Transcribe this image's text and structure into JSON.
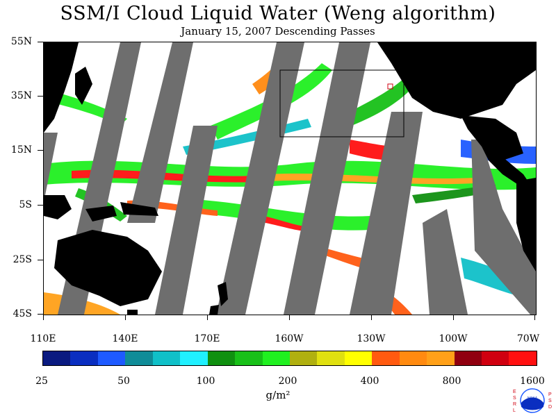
{
  "title": "SSM/I Cloud Liquid Water (Weng algorithm)",
  "subtitle": "January 15, 2007  Descending Passes",
  "lat_labels": [
    "55N",
    "35N",
    "15N",
    "5S",
    "25S",
    "45S"
  ],
  "lon_labels": [
    "110E",
    "140E",
    "170E",
    "160W",
    "130W",
    "100W",
    "70W"
  ],
  "colorbar": {
    "labels": [
      "25",
      "50",
      "100",
      "200",
      "400",
      "800",
      "1600"
    ],
    "units": "g/m²",
    "colors": [
      "#0a1a80",
      "#0a2ec0",
      "#1e5aff",
      "#108c98",
      "#10c0c8",
      "#20f0ff",
      "#109010",
      "#18c018",
      "#20f020",
      "#b0b010",
      "#e0e010",
      "#ffff00",
      "#ff5a10",
      "#ff8a10",
      "#ffa018",
      "#900010",
      "#d00010",
      "#ff1010"
    ]
  },
  "colors": {
    "land": "#000000",
    "no_data_swath": "#6e6e6e",
    "ocean_clear": "#ffffff",
    "subregion_box": "#000000"
  },
  "logo": {
    "left_letters": "ESRL",
    "right_letters": "PSD",
    "center_text": "NOAA"
  }
}
